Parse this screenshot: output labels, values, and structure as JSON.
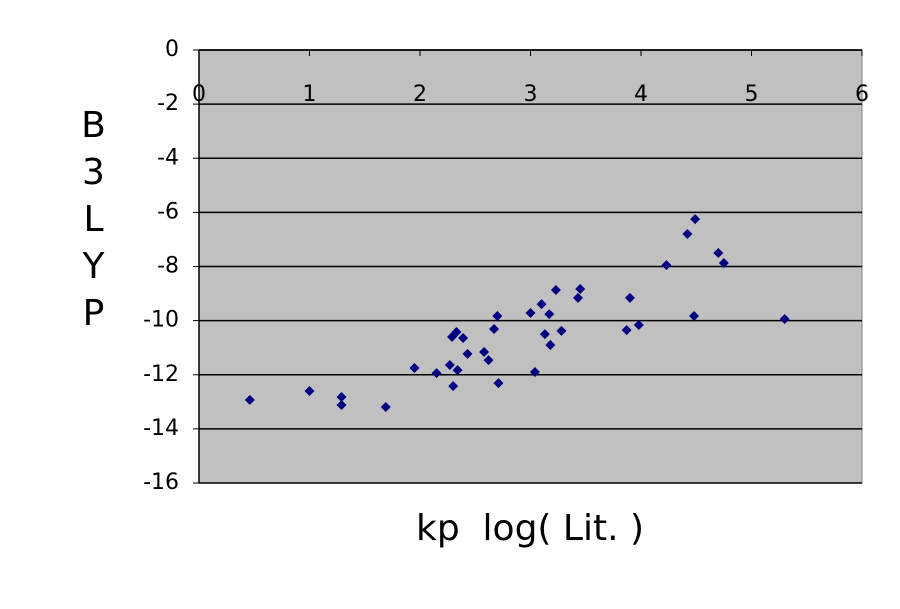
{
  "chart_data": {
    "type": "scatter",
    "xlabel": "kp  log( Lit. )",
    "ylabel": "B3LYP",
    "x": [
      0.46,
      1.0,
      1.29,
      1.29,
      1.69,
      1.95,
      2.15,
      2.27,
      2.29,
      2.3,
      2.33,
      2.34,
      2.39,
      2.43,
      2.58,
      2.62,
      2.67,
      2.7,
      2.71,
      3.0,
      3.04,
      3.1,
      3.13,
      3.17,
      3.18,
      3.23,
      3.28,
      3.43,
      3.45,
      3.87,
      3.9,
      3.98,
      4.23,
      4.42,
      4.48,
      4.49,
      4.7,
      4.75,
      5.3
    ],
    "values": [
      -12.93,
      -12.6,
      -12.82,
      -13.12,
      -13.19,
      -11.75,
      -11.94,
      -11.64,
      -10.6,
      -12.42,
      -10.42,
      -11.83,
      -10.64,
      -11.23,
      -11.16,
      -11.46,
      -10.31,
      -9.83,
      -12.31,
      -9.72,
      -11.9,
      -9.39,
      -10.5,
      -9.76,
      -10.9,
      -8.87,
      -10.38,
      -9.16,
      -8.83,
      -10.35,
      -9.16,
      -10.16,
      -7.95,
      -6.8,
      -9.83,
      -6.25,
      -7.5,
      -7.87,
      -9.94
    ],
    "color": "#000080",
    "xlim": [
      0,
      6
    ],
    "xticks": [
      0,
      1,
      2,
      3,
      4,
      5,
      6
    ],
    "ylim": [
      -16,
      0
    ],
    "yticks": [
      0,
      -2,
      -4,
      -6,
      -8,
      -10,
      -12,
      -14,
      -16
    ],
    "grid": true,
    "background": "#c0c0c0"
  }
}
